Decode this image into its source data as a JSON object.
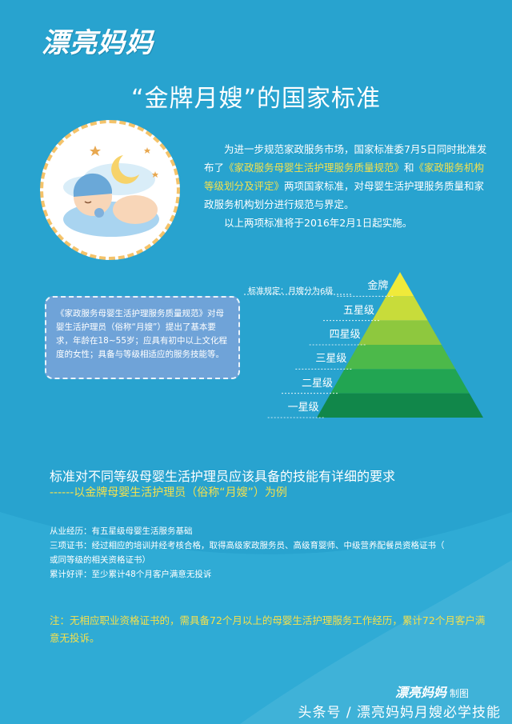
{
  "logo": "漂亮妈妈",
  "title": "“金牌月嫂”的国家标准",
  "intro": {
    "p1_a": "为进一步规范家政服务市场，国家标准委7月5日同时批准发布了",
    "p1_hl1": "《家政服务母婴生活护理服务质量规范》",
    "p1_b": "和",
    "p1_hl2": "《家政服务机构等级划分及评定》",
    "p1_c": "两项国家标准，对母婴生活护理服务质量和家政服务机构划分进行规范与界定。",
    "p2": "以上两项标准将于2016年2月1日起实施。"
  },
  "note": "《家政服务母婴生活护理服务质量规范》对母婴生活护理员（俗称“月嫂”）提出了基本要求，年龄在18~55岁；应具有初中以上文化程度的女性；具备与等级相适应的服务技能等。",
  "pyramid": {
    "standard_label": "标准规定：月嫂分为6级",
    "levels": [
      "金牌",
      "五星级",
      "四星级",
      "三星级",
      "二星级",
      "一星级"
    ],
    "colors": [
      "#f0ea3a",
      "#c8dc3a",
      "#8ec83e",
      "#4cb94a",
      "#22a552",
      "#11874a"
    ]
  },
  "section": {
    "heading": "标准对不同等级母婴生活护理员应该具备的技能有详细的要求",
    "subheading": "------以金牌母婴生活护理员（俗称“月嫂”）为例"
  },
  "requirements": [
    "从业经历：有五星级母婴生活服务基础",
    "三项证书：经过相应的培训并经考核合格，取得高级家政服务员、高级育婴师、中级营养配餐员资格证书（",
    "或同等级的相关资格证书）",
    "累计好评：至少累计48个月客户满意无投诉"
  ],
  "footnote": "注：无相应职业资格证书的，需具备72个月以上的母婴生活护理服务工作经历，累计72个月客户满意无投诉。",
  "credit": {
    "logo": "漂亮妈妈",
    "text": "制图"
  },
  "watermark": "头条号 / 漂亮妈妈月嫂必学技能"
}
